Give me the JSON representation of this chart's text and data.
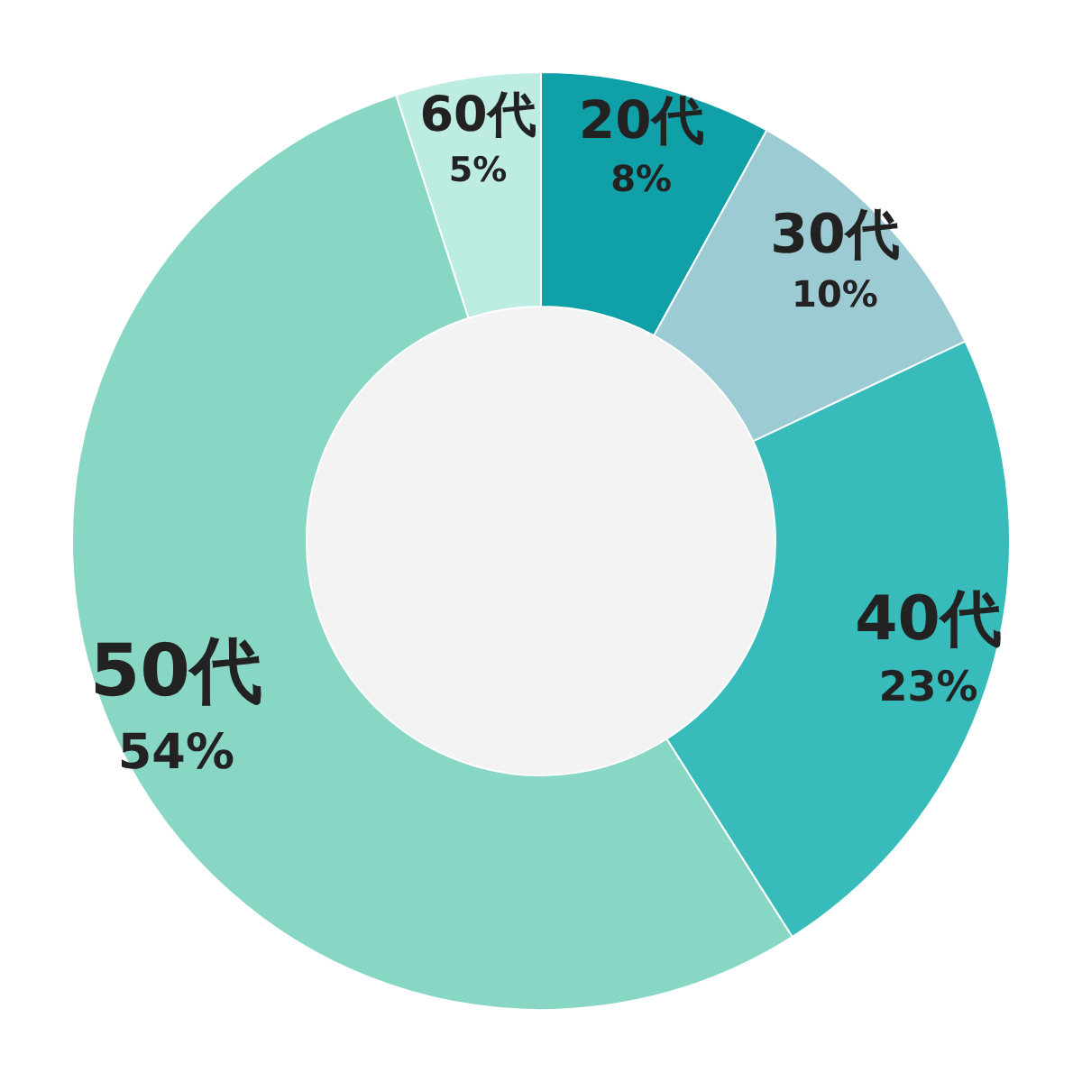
{
  "chart_data": {
    "type": "donut",
    "categories": [
      "20代",
      "30代",
      "40代",
      "50代",
      "60代"
    ],
    "values": [
      8,
      10,
      23,
      54,
      5
    ],
    "value_labels": [
      "8%",
      "10%",
      "23%",
      "54%",
      "5%"
    ],
    "colors": [
      "#10a0a8",
      "#9ccbd3",
      "#38bcbb",
      "#88d6c4",
      "#bdece3"
    ],
    "legend": false
  }
}
